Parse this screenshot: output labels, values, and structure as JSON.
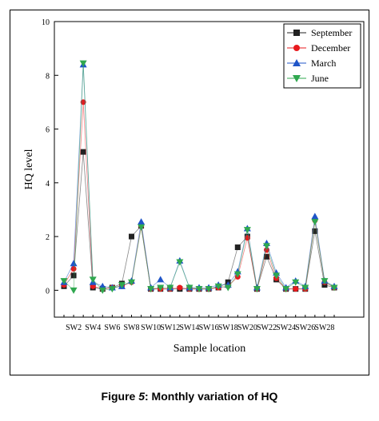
{
  "chart_data": {
    "type": "line",
    "xlabel": "Sample location",
    "ylabel": "HQ level",
    "ylim": [
      -1,
      10
    ],
    "yticks": [
      0,
      2,
      4,
      6,
      8,
      10
    ],
    "tick_labels": [
      "SW2",
      "SW4",
      "SW6",
      "SW8",
      "SW10",
      "SW12",
      "SW14",
      "SW16",
      "SW18",
      "SW20",
      "SW22",
      "SW24",
      "SW26",
      "SW28"
    ],
    "legend_position": "top-right",
    "x": [
      "SW1",
      "SW2",
      "SW3",
      "SW4",
      "SW5",
      "SW6",
      "SW7",
      "SW8",
      "SW9",
      "SW10",
      "SW11",
      "SW12",
      "SW13",
      "SW14",
      "SW15",
      "SW16",
      "SW17",
      "SW18",
      "SW19",
      "SW20",
      "SW21",
      "SW22",
      "SW23",
      "SW24",
      "SW25",
      "SW26",
      "SW27",
      "SW28",
      "SW29"
    ],
    "series": [
      {
        "name": "September",
        "color": "#222222",
        "marker": "square",
        "values": [
          0.15,
          0.55,
          5.15,
          0.1,
          0.05,
          0.1,
          0.25,
          2.0,
          2.4,
          0.05,
          0.05,
          0.05,
          0.05,
          0.05,
          0.05,
          0.05,
          0.1,
          0.3,
          1.6,
          2.0,
          0.05,
          1.25,
          0.4,
          0.05,
          0.05,
          0.05,
          2.2,
          0.2,
          0.1
        ]
      },
      {
        "name": "December",
        "color": "#e8191d",
        "marker": "circle",
        "values": [
          0.2,
          0.8,
          7.0,
          0.15,
          0.05,
          0.1,
          0.15,
          0.3,
          2.4,
          0.05,
          0.05,
          0.05,
          0.1,
          0.05,
          0.05,
          0.05,
          0.1,
          0.15,
          0.5,
          1.95,
          0.05,
          1.5,
          0.45,
          0.05,
          0.05,
          0.05,
          2.6,
          0.3,
          0.1
        ]
      },
      {
        "name": "March",
        "color": "#1f55c8",
        "marker": "triangle-up",
        "values": [
          0.3,
          1.0,
          8.4,
          0.3,
          0.15,
          0.1,
          0.15,
          0.35,
          2.55,
          0.1,
          0.4,
          0.1,
          1.1,
          0.1,
          0.1,
          0.1,
          0.2,
          0.2,
          0.7,
          2.3,
          0.1,
          1.75,
          0.65,
          0.1,
          0.35,
          0.15,
          2.75,
          0.35,
          0.15
        ]
      },
      {
        "name": "June",
        "color": "#2fa84f",
        "marker": "triangle-down",
        "values": [
          0.35,
          0.0,
          8.45,
          0.4,
          0.0,
          0.05,
          0.2,
          0.3,
          2.35,
          0.05,
          0.1,
          0.1,
          1.05,
          0.1,
          0.05,
          0.05,
          0.15,
          0.1,
          0.6,
          2.25,
          0.05,
          1.65,
          0.55,
          0.05,
          0.3,
          0.1,
          2.55,
          0.35,
          0.1
        ]
      }
    ]
  },
  "caption": {
    "prefix": "Figure ",
    "number": "5",
    "text": ": Monthly variation of  HQ"
  }
}
